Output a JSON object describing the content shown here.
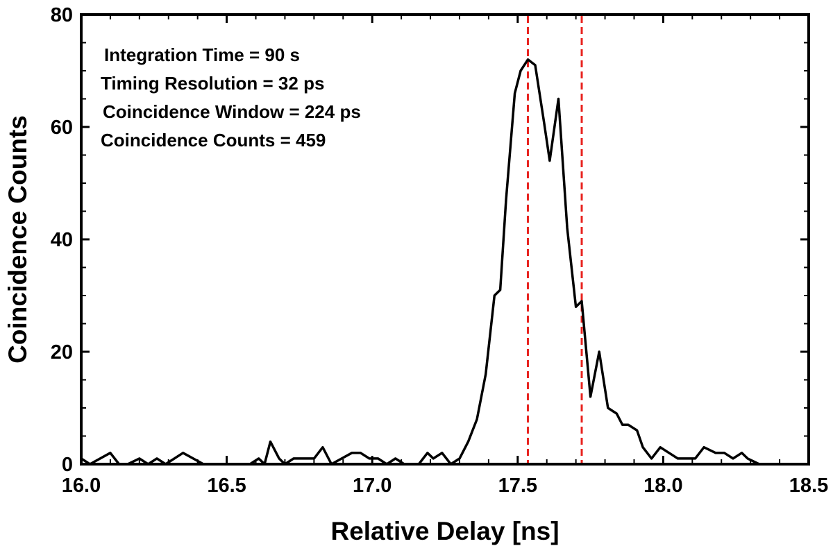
{
  "chart_data": {
    "type": "line",
    "title": "",
    "xlabel": "Relative Delay [ns]",
    "ylabel": "Coincidence Counts",
    "xlim": [
      16.0,
      18.5
    ],
    "ylim": [
      0,
      80
    ],
    "x_ticks": [
      "16.0",
      "16.5",
      "17.0",
      "17.5",
      "18.0",
      "18.5"
    ],
    "x_tick_values": [
      16.0,
      16.5,
      17.0,
      17.5,
      18.0,
      18.5
    ],
    "y_ticks": [
      "0",
      "20",
      "40",
      "60",
      "80"
    ],
    "y_tick_values": [
      0,
      20,
      40,
      60,
      80
    ],
    "grid": false,
    "annotations": [
      "Integration Time = 90 s",
      "Timing Resolution = 32 ps",
      "Coincidence Window = 224 ps",
      "Coincidence Counts = 459"
    ],
    "vertical_markers": {
      "color": "#e8231f",
      "style": "dashed",
      "x": [
        17.535,
        17.72
      ]
    },
    "series": [
      {
        "color": "#000000",
        "x": [
          16.0,
          16.03,
          16.1,
          16.13,
          16.16,
          16.2,
          16.23,
          16.26,
          16.29,
          16.35,
          16.42,
          16.58,
          16.61,
          16.63,
          16.65,
          16.68,
          16.7,
          16.73,
          16.8,
          16.83,
          16.86,
          16.93,
          16.96,
          16.99,
          17.02,
          17.05,
          17.08,
          17.11,
          17.16,
          17.19,
          17.21,
          17.24,
          17.27,
          17.3,
          17.33,
          17.36,
          17.39,
          17.42,
          17.44,
          17.46,
          17.49,
          17.51,
          17.535,
          17.56,
          17.59,
          17.61,
          17.64,
          17.67,
          17.7,
          17.72,
          17.75,
          17.78,
          17.81,
          17.84,
          17.86,
          17.88,
          17.91,
          17.93,
          17.96,
          17.99,
          18.02,
          18.05,
          18.08,
          18.11,
          18.14,
          18.18,
          18.21,
          18.24,
          18.27,
          18.29,
          18.33,
          18.36,
          18.39,
          18.42,
          18.45,
          18.47,
          18.5
        ],
        "y": [
          1,
          0,
          2,
          0,
          0,
          1,
          0,
          1,
          0,
          2,
          0,
          0,
          1,
          0,
          4,
          1,
          0,
          1,
          1,
          3,
          0,
          2,
          2,
          1,
          1,
          0,
          1,
          0,
          0,
          2,
          1,
          2,
          0,
          1,
          4,
          8,
          16,
          30,
          31,
          47,
          66,
          70,
          72,
          71,
          61,
          54,
          65,
          42,
          28,
          29,
          12,
          20,
          10,
          9,
          7,
          7,
          6,
          3,
          1,
          3,
          2,
          1,
          1,
          1,
          3,
          2,
          2,
          1,
          2,
          1,
          0,
          0,
          0,
          0,
          0,
          0,
          0
        ]
      }
    ]
  }
}
